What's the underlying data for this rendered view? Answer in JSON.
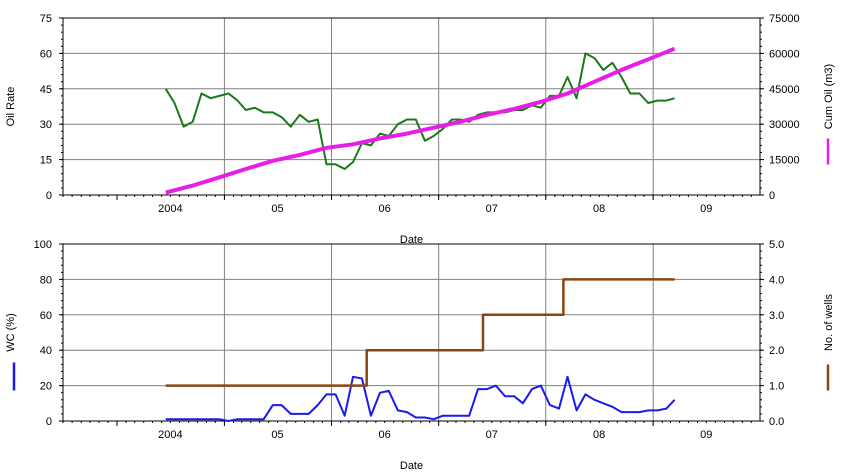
{
  "colors": {
    "oil_rate": "#1a7a1a",
    "cum_oil": "#e81ee8",
    "water_cut": "#1a1aee",
    "wells": "#8b4513",
    "grid": "#808080"
  },
  "chart_data": [
    {
      "type": "line",
      "xlabel": "Date",
      "ylabel": "Oil Rate",
      "y2label": "Cum Oil (m3)",
      "xlim": [
        "2003-07-01",
        "2009-12-31"
      ],
      "ylim": [
        0,
        75
      ],
      "y2lim": [
        0,
        75000
      ],
      "x_tick_labels": [
        {
          "label": "2004",
          "date": "2004-01-01"
        },
        {
          "label": "05",
          "date": "2005-01-01"
        },
        {
          "label": "06",
          "date": "2006-01-01"
        },
        {
          "label": "07",
          "date": "2007-01-01"
        },
        {
          "label": "08",
          "date": "2008-01-01"
        },
        {
          "label": "09",
          "date": "2009-01-01"
        }
      ],
      "y_ticks": [
        0,
        15,
        30,
        45,
        60,
        75
      ],
      "y2_ticks": [
        0,
        15000,
        30000,
        45000,
        60000,
        75000
      ],
      "grid": true,
      "series": [
        {
          "name": "Oil Rate",
          "axis": "left",
          "x": [
            "2004-06-15",
            "2004-07-15",
            "2004-08-15",
            "2004-09-15",
            "2004-10-15",
            "2004-11-15",
            "2004-12-15",
            "2005-01-15",
            "2005-02-15",
            "2005-03-15",
            "2005-04-15",
            "2005-05-15",
            "2005-06-15",
            "2005-07-15",
            "2005-08-15",
            "2005-09-15",
            "2005-10-15",
            "2005-11-15",
            "2005-12-15",
            "2006-01-15",
            "2006-02-15",
            "2006-03-15",
            "2006-04-15",
            "2006-05-15",
            "2006-06-15",
            "2006-07-15",
            "2006-08-15",
            "2006-09-15",
            "2006-10-15",
            "2006-11-15",
            "2006-12-15",
            "2007-01-15",
            "2007-02-15",
            "2007-03-15",
            "2007-04-15",
            "2007-05-15",
            "2007-06-15",
            "2007-07-15",
            "2007-08-15",
            "2007-09-15",
            "2007-10-15",
            "2007-11-15",
            "2007-12-15",
            "2008-01-15",
            "2008-02-15",
            "2008-03-15",
            "2008-04-15",
            "2008-05-15",
            "2008-06-15",
            "2008-07-15",
            "2008-08-15",
            "2008-09-15",
            "2008-10-15",
            "2008-11-15",
            "2008-12-15",
            "2009-01-15",
            "2009-02-15",
            "2009-03-15"
          ],
          "y": [
            45,
            39,
            29,
            31,
            43,
            41,
            42,
            43,
            40,
            36,
            37,
            35,
            35,
            33,
            29,
            34,
            31,
            32,
            13,
            13,
            11,
            14,
            22,
            21,
            26,
            25,
            30,
            32,
            32,
            23,
            25,
            28,
            32,
            32,
            31,
            34,
            35,
            35,
            35,
            36,
            36,
            38,
            37,
            42,
            42,
            50,
            41,
            60,
            58,
            53,
            56,
            50,
            43,
            43,
            39,
            40,
            40,
            41
          ]
        },
        {
          "name": "Cum Oil (m3)",
          "axis": "right",
          "x": [
            "2004-06-15",
            "2004-09-15",
            "2004-12-15",
            "2005-03-15",
            "2005-06-15",
            "2005-09-15",
            "2005-12-15",
            "2006-03-15",
            "2006-06-15",
            "2006-09-15",
            "2006-12-15",
            "2007-03-15",
            "2007-06-15",
            "2007-09-15",
            "2007-12-15",
            "2008-03-15",
            "2008-06-15",
            "2008-09-15",
            "2008-12-15",
            "2009-03-15"
          ],
          "y": [
            1000,
            4000,
            7500,
            11000,
            14500,
            17000,
            20000,
            21500,
            24000,
            26000,
            28500,
            31000,
            34000,
            36500,
            39500,
            43000,
            48000,
            53000,
            57500,
            62000
          ]
        }
      ]
    },
    {
      "type": "line",
      "xlabel": "Date",
      "ylabel": "WC (%)",
      "y2label": "No. of wells",
      "xlim": [
        "2003-07-01",
        "2009-12-31"
      ],
      "ylim": [
        0,
        100
      ],
      "y2lim": [
        0,
        5
      ],
      "x_tick_labels": [
        {
          "label": "2004",
          "date": "2004-01-01"
        },
        {
          "label": "05",
          "date": "2005-01-01"
        },
        {
          "label": "06",
          "date": "2006-01-01"
        },
        {
          "label": "07",
          "date": "2007-01-01"
        },
        {
          "label": "08",
          "date": "2008-01-01"
        },
        {
          "label": "09",
          "date": "2009-01-01"
        }
      ],
      "y_ticks": [
        0,
        20,
        40,
        60,
        80,
        100
      ],
      "y2_ticks": [
        "0.0",
        "1.0",
        "2.0",
        "3.0",
        "4.0",
        "5.0"
      ],
      "grid": true,
      "series": [
        {
          "name": "WC (%)",
          "axis": "left",
          "x": [
            "2004-06-15",
            "2004-07-15",
            "2004-08-15",
            "2004-09-15",
            "2004-10-15",
            "2004-11-15",
            "2004-12-15",
            "2005-01-15",
            "2005-02-15",
            "2005-03-15",
            "2005-04-15",
            "2005-05-15",
            "2005-06-15",
            "2005-07-15",
            "2005-08-15",
            "2005-09-15",
            "2005-10-15",
            "2005-11-15",
            "2005-12-15",
            "2006-01-15",
            "2006-02-15",
            "2006-03-15",
            "2006-04-15",
            "2006-05-15",
            "2006-06-15",
            "2006-07-15",
            "2006-08-15",
            "2006-09-15",
            "2006-10-15",
            "2006-11-15",
            "2006-12-15",
            "2007-01-15",
            "2007-02-15",
            "2007-03-15",
            "2007-04-15",
            "2007-05-15",
            "2007-06-15",
            "2007-07-15",
            "2007-08-15",
            "2007-09-15",
            "2007-10-15",
            "2007-11-15",
            "2007-12-15",
            "2008-01-15",
            "2008-02-15",
            "2008-03-15",
            "2008-04-15",
            "2008-05-15",
            "2008-06-15",
            "2008-07-15",
            "2008-08-15",
            "2008-09-15",
            "2008-10-15",
            "2008-11-15",
            "2008-12-15",
            "2009-01-15",
            "2009-02-15",
            "2009-03-15"
          ],
          "y": [
            1,
            1,
            1,
            1,
            1,
            1,
            1,
            0,
            1,
            1,
            1,
            1,
            9,
            9,
            4,
            4,
            4,
            9,
            15,
            15,
            3,
            25,
            24,
            3,
            16,
            17,
            6,
            5,
            2,
            2,
            1,
            3,
            3,
            3,
            3,
            18,
            18,
            20,
            14,
            14,
            10,
            18,
            20,
            9,
            7,
            25,
            6,
            15,
            12,
            10,
            8,
            5,
            5,
            5,
            6,
            6,
            7,
            12
          ]
        },
        {
          "name": "No. of wells",
          "axis": "right",
          "x": [
            "2004-06-15",
            "2006-03-01",
            "2006-05-01",
            "2007-05-01",
            "2007-06-01",
            "2008-02-01",
            "2008-03-01",
            "2009-03-15"
          ],
          "y": [
            1,
            1,
            2,
            2,
            3,
            3,
            4,
            4
          ]
        }
      ]
    }
  ]
}
